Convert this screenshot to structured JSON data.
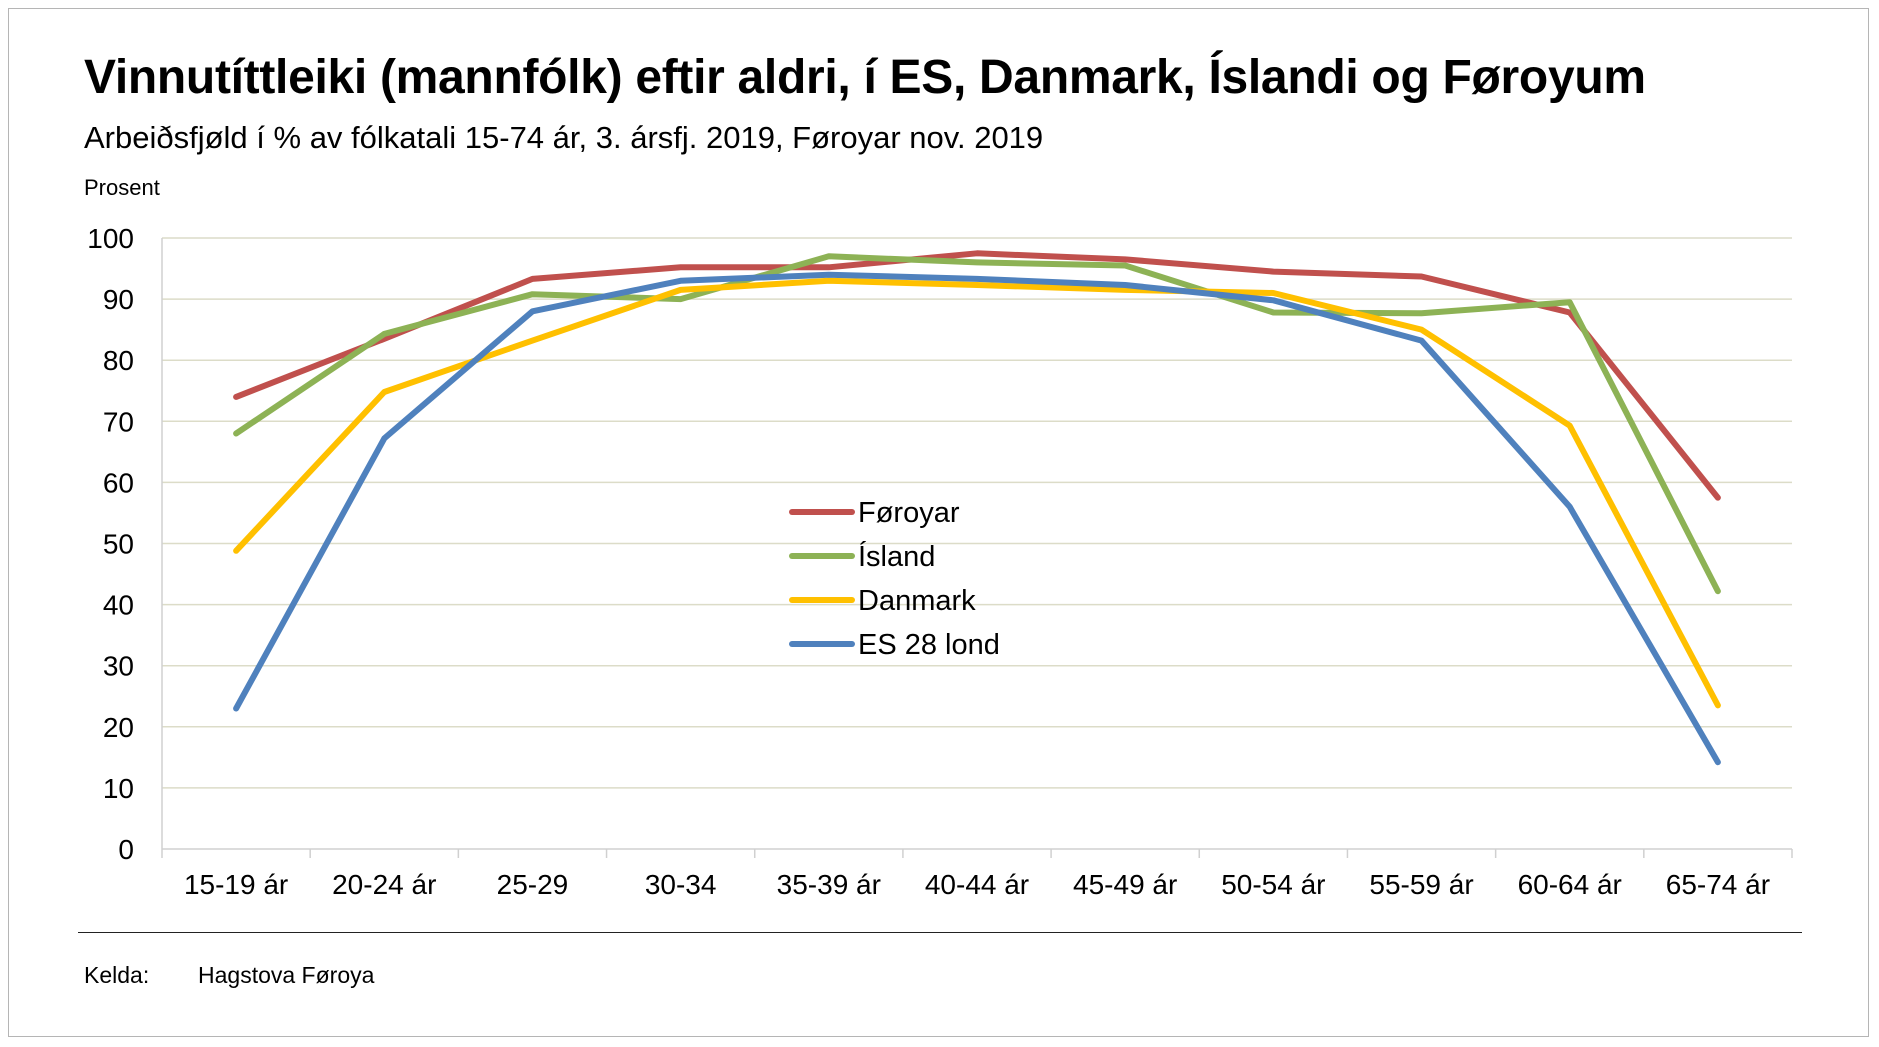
{
  "chart_data": {
    "type": "line",
    "title": "Vinnutíttleiki (mannfólk) eftir aldri, í ES, Danmark, Íslandi og Føroyum",
    "subtitle": "Arbeiðsfjøld í % av fólkatali 15-74 ár, 3. ársfj. 2019, Føroyar nov. 2019",
    "ylabel": "Prosent",
    "xlabel": "",
    "ylim": [
      0,
      100
    ],
    "yticks": [
      0,
      10,
      20,
      30,
      40,
      50,
      60,
      70,
      80,
      90,
      100
    ],
    "grid": true,
    "legend_position": "center",
    "categories": [
      "15-19 ár",
      "20-24 ár",
      "25-29",
      "30-34",
      "35-39 ár",
      "40-44 ár",
      "45-49 ár",
      "50-54 ár",
      "55-59 ár",
      "60-64 ár",
      "65-74 ár"
    ],
    "series": [
      {
        "name": "Føroyar",
        "color": "#c0504d",
        "values": [
          74.0,
          83.5,
          93.3,
          95.2,
          95.2,
          97.5,
          96.5,
          94.5,
          93.7,
          87.8,
          57.5
        ]
      },
      {
        "name": "Ísland",
        "color": "#8db255",
        "values": [
          68.0,
          84.3,
          90.8,
          90.0,
          97.0,
          96.0,
          95.5,
          87.8,
          87.7,
          89.5,
          42.2
        ]
      },
      {
        "name": "Danmark",
        "color": "#ffc000",
        "values": [
          48.8,
          74.8,
          83.2,
          91.5,
          93.0,
          92.3,
          91.5,
          91.0,
          85.0,
          69.3,
          23.5
        ]
      },
      {
        "name": "ES 28 lond",
        "color": "#4f81bd",
        "values": [
          23.0,
          67.2,
          88.0,
          93.0,
          94.0,
          93.3,
          92.3,
          89.8,
          83.2,
          56.0,
          14.2
        ]
      }
    ]
  },
  "source": {
    "label": "Kelda:",
    "value": "Hagstova Føroya"
  }
}
